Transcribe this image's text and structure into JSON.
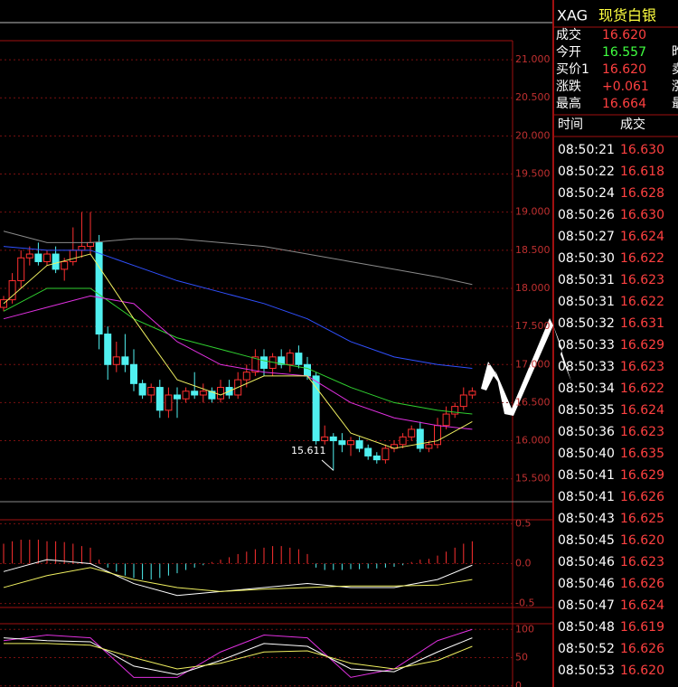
{
  "chart": {
    "type": "candlestick",
    "ylim": [
      15.2,
      21.25
    ],
    "yticks": [
      {
        "value": 21,
        "label": "21.000"
      },
      {
        "value": 20.5,
        "label": "20.500"
      },
      {
        "value": 20,
        "label": "20.000"
      },
      {
        "value": 19.5,
        "label": "19.500"
      },
      {
        "value": 19,
        "label": "19.000"
      },
      {
        "value": 18.5,
        "label": "18.500"
      },
      {
        "value": 18,
        "label": "18.000"
      },
      {
        "value": 17.5,
        "label": "17.500"
      },
      {
        "value": 17,
        "label": "17.000"
      },
      {
        "value": 16.5,
        "label": "16.500"
      },
      {
        "value": 16,
        "label": "16.000"
      },
      {
        "value": 15.5,
        "label": "15.500"
      }
    ],
    "candles": [
      [
        17.75,
        17.9,
        17.7,
        17.85
      ],
      [
        17.85,
        18.2,
        17.8,
        18.1
      ],
      [
        18.1,
        18.5,
        18.0,
        18.4
      ],
      [
        18.4,
        18.55,
        18.3,
        18.45
      ],
      [
        18.45,
        18.6,
        18.3,
        18.35
      ],
      [
        18.35,
        18.5,
        18.3,
        18.45
      ],
      [
        18.45,
        18.55,
        18.2,
        18.25
      ],
      [
        18.25,
        18.4,
        18.1,
        18.35
      ],
      [
        18.35,
        18.8,
        18.3,
        18.5
      ],
      [
        18.5,
        19.0,
        18.4,
        18.55
      ],
      [
        18.55,
        19.0,
        18.45,
        18.6
      ],
      [
        18.6,
        18.7,
        17.2,
        17.4
      ],
      [
        17.4,
        17.5,
        16.8,
        17.0
      ],
      [
        17.0,
        17.3,
        16.9,
        17.1
      ],
      [
        17.1,
        17.4,
        16.9,
        17.0
      ],
      [
        17.0,
        17.2,
        16.65,
        16.75
      ],
      [
        16.75,
        16.8,
        16.55,
        16.6
      ],
      [
        16.6,
        16.75,
        16.5,
        16.7
      ],
      [
        16.7,
        16.8,
        16.3,
        16.4
      ],
      [
        16.4,
        16.7,
        16.3,
        16.6
      ],
      [
        16.6,
        16.7,
        16.3,
        16.55
      ],
      [
        16.55,
        16.7,
        16.5,
        16.65
      ],
      [
        16.65,
        16.9,
        16.55,
        16.6
      ],
      [
        16.6,
        16.75,
        16.5,
        16.65
      ],
      [
        16.65,
        16.7,
        16.5,
        16.55
      ],
      [
        16.55,
        16.8,
        16.5,
        16.7
      ],
      [
        16.7,
        16.8,
        16.55,
        16.6
      ],
      [
        16.6,
        16.9,
        16.55,
        16.8
      ],
      [
        16.8,
        17.0,
        16.7,
        16.9
      ],
      [
        16.9,
        17.2,
        16.85,
        17.1
      ],
      [
        17.1,
        17.2,
        16.85,
        16.95
      ],
      [
        16.95,
        17.15,
        16.85,
        17.1
      ],
      [
        17.1,
        17.2,
        16.95,
        17.0
      ],
      [
        17.0,
        17.2,
        16.9,
        17.15
      ],
      [
        17.15,
        17.25,
        16.95,
        17.0
      ],
      [
        17.0,
        17.1,
        16.8,
        16.85
      ],
      [
        16.85,
        16.9,
        15.95,
        16.0
      ],
      [
        16.0,
        16.2,
        15.95,
        16.05
      ],
      [
        16.05,
        16.1,
        15.611,
        16.0
      ],
      [
        16.0,
        16.1,
        15.85,
        15.95
      ],
      [
        15.95,
        16.05,
        15.8,
        16.0
      ],
      [
        16.0,
        16.05,
        15.85,
        15.9
      ],
      [
        15.9,
        15.95,
        15.75,
        15.8
      ],
      [
        15.8,
        15.85,
        15.7,
        15.75
      ],
      [
        15.75,
        15.95,
        15.7,
        15.9
      ],
      [
        15.9,
        16.0,
        15.85,
        15.95
      ],
      [
        15.95,
        16.1,
        15.9,
        16.05
      ],
      [
        16.05,
        16.2,
        16.0,
        16.15
      ],
      [
        16.15,
        16.25,
        15.85,
        15.9
      ],
      [
        15.9,
        16.0,
        15.85,
        15.95
      ],
      [
        15.95,
        16.3,
        15.9,
        16.2
      ],
      [
        16.2,
        16.45,
        16.15,
        16.35
      ],
      [
        16.35,
        16.5,
        16.3,
        16.45
      ],
      [
        16.45,
        16.7,
        16.4,
        16.6
      ],
      [
        16.6,
        16.7,
        16.55,
        16.65
      ]
    ],
    "ma": [
      {
        "color": "#8a8a8a",
        "values": [
          18.75,
          18.6,
          18.6,
          18.65,
          18.65,
          18.6,
          18.55,
          18.45,
          18.35,
          18.25,
          18.15,
          18.05
        ]
      },
      {
        "color": "#3050ff",
        "values": [
          18.55,
          18.5,
          18.5,
          18.3,
          18.1,
          17.95,
          17.8,
          17.6,
          17.3,
          17.1,
          17.0,
          16.95
        ]
      },
      {
        "color": "#30d030",
        "values": [
          17.7,
          18.0,
          18.0,
          17.6,
          17.35,
          17.2,
          17.05,
          16.95,
          16.7,
          16.5,
          16.4,
          16.35
        ]
      },
      {
        "color": "#e030e0",
        "values": [
          17.6,
          17.75,
          17.9,
          17.8,
          17.3,
          17.0,
          16.9,
          16.85,
          16.5,
          16.3,
          16.2,
          16.15
        ]
      },
      {
        "color": "#f0f060",
        "values": [
          17.8,
          18.3,
          18.45,
          17.6,
          16.8,
          16.6,
          16.85,
          16.85,
          16.1,
          15.9,
          16.0,
          16.25
        ]
      }
    ],
    "low_label": 15.611,
    "macd": {
      "ylim": [
        -0.55,
        0.55
      ],
      "yticks": [
        0.5,
        {
          "value": 0,
          "label": "0.0"
        },
        -0.5
      ],
      "hist": [
        0.25,
        0.28,
        0.3,
        0.3,
        0.3,
        0.28,
        0.28,
        0.27,
        0.25,
        0.22,
        0.2,
        0.05,
        -0.05,
        -0.1,
        -0.15,
        -0.18,
        -0.2,
        -0.2,
        -0.18,
        -0.15,
        -0.12,
        -0.08,
        -0.05,
        -0.02,
        0.02,
        0.05,
        0.08,
        0.12,
        0.15,
        0.18,
        0.2,
        0.22,
        0.22,
        0.2,
        0.18,
        0.12,
        -0.05,
        -0.08,
        -0.08,
        -0.08,
        -0.07,
        -0.07,
        -0.06,
        -0.06,
        -0.05,
        -0.04,
        -0.02,
        0.02,
        0.05,
        0.06,
        0.1,
        0.15,
        0.2,
        0.25,
        0.28
      ],
      "lines": [
        {
          "color": "#ffffff",
          "values": [
            -0.1,
            0.05,
            0.0,
            -0.25,
            -0.4,
            -0.35,
            -0.3,
            -0.25,
            -0.3,
            -0.3,
            -0.2,
            -0.02
          ]
        },
        {
          "color": "#f0f060",
          "values": [
            -0.3,
            -0.15,
            -0.05,
            -0.2,
            -0.3,
            -0.35,
            -0.32,
            -0.3,
            -0.28,
            -0.28,
            -0.27,
            -0.2
          ]
        }
      ]
    },
    "osc": {
      "ylim": [
        -2,
        110
      ],
      "yticks": [
        100,
        50,
        0
      ],
      "lines": [
        {
          "color": "#e030e0",
          "values": [
            80,
            90,
            85,
            15,
            15,
            60,
            90,
            85,
            15,
            30,
            80,
            100
          ]
        },
        {
          "color": "#ffffff",
          "values": [
            85,
            80,
            78,
            35,
            20,
            45,
            75,
            70,
            30,
            25,
            60,
            85
          ]
        },
        {
          "color": "#f0f060",
          "values": [
            75,
            75,
            72,
            50,
            30,
            40,
            60,
            62,
            40,
            30,
            45,
            70
          ]
        }
      ]
    }
  },
  "sidebar": {
    "code": "XAG",
    "name": "现货白银",
    "quotes": [
      {
        "label": "成交",
        "value": "16.620",
        "color": "#ff4040"
      },
      {
        "label": "今开",
        "value": "16.557",
        "color": "#40ff40"
      },
      {
        "label": "买价1",
        "value": "16.620",
        "color": "#ff4040"
      },
      {
        "label": "涨跌",
        "value": "+0.061",
        "color": "#ff4040"
      },
      {
        "label": "最高",
        "value": "16.664",
        "color": "#ff4040"
      }
    ],
    "cut_labels": [
      "昨",
      "卖",
      "涨",
      "最"
    ],
    "header": [
      "时间",
      "成交"
    ],
    "ticks": [
      [
        "08:50:21",
        "16.630"
      ],
      [
        "08:50:22",
        "16.618"
      ],
      [
        "08:50:24",
        "16.628"
      ],
      [
        "08:50:26",
        "16.630"
      ],
      [
        "08:50:27",
        "16.624"
      ],
      [
        "08:50:30",
        "16.622"
      ],
      [
        "08:50:31",
        "16.623"
      ],
      [
        "08:50:31",
        "16.622"
      ],
      [
        "08:50:32",
        "16.631"
      ],
      [
        "08:50:33",
        "16.629"
      ],
      [
        "08:50:33",
        "16.623"
      ],
      [
        "08:50:34",
        "16.622"
      ],
      [
        "08:50:35",
        "16.624"
      ],
      [
        "08:50:36",
        "16.623"
      ],
      [
        "08:50:40",
        "16.635"
      ],
      [
        "08:50:41",
        "16.629"
      ],
      [
        "08:50:41",
        "16.626"
      ],
      [
        "08:50:43",
        "16.625"
      ],
      [
        "08:50:45",
        "16.620"
      ],
      [
        "08:50:46",
        "16.623"
      ],
      [
        "08:50:46",
        "16.626"
      ],
      [
        "08:50:47",
        "16.624"
      ],
      [
        "08:50:48",
        "16.619"
      ],
      [
        "08:50:52",
        "16.626"
      ],
      [
        "08:50:53",
        "16.620"
      ]
    ]
  }
}
